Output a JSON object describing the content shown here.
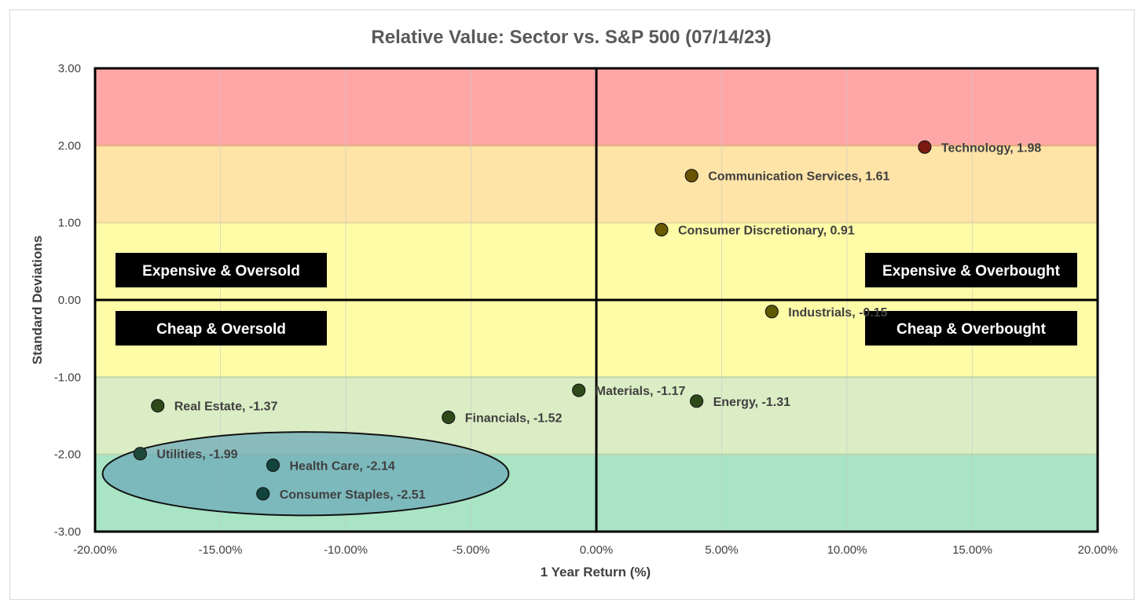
{
  "chart_data": {
    "type": "scatter",
    "title": "Relative Value: Sector vs. S&P 500 (07/14/23)",
    "xlabel": "1 Year Return (%)",
    "ylabel": "Standard Deviations",
    "xlim": [
      -20,
      20
    ],
    "ylim": [
      -3,
      3
    ],
    "x_ticks": [
      "-20.00%",
      "-15.00%",
      "-10.00%",
      "-5.00%",
      "0.00%",
      "5.00%",
      "10.00%",
      "15.00%",
      "20.00%"
    ],
    "y_ticks": [
      "3.00",
      "2.00",
      "1.00",
      "0.00",
      "-1.00",
      "-2.00",
      "-3.00"
    ],
    "grid": true,
    "bands": [
      {
        "from": 2,
        "to": 3,
        "color": "#ffa7a7"
      },
      {
        "from": 1,
        "to": 2,
        "color": "#ffe4a8"
      },
      {
        "from": -1,
        "to": 1,
        "color": "#fffca8"
      },
      {
        "from": -2,
        "to": -1,
        "color": "#daedc4"
      },
      {
        "from": -3,
        "to": -2,
        "color": "#a9e4c4"
      }
    ],
    "points": [
      {
        "label": "Technology, 1.98",
        "x": 13.1,
        "y": 1.98,
        "color": "#7a1a10"
      },
      {
        "label": "Communication Services, 1.61",
        "x": 3.8,
        "y": 1.61,
        "color": "#6a5200"
      },
      {
        "label": "Consumer Discretionary, 0.91",
        "x": 2.6,
        "y": 0.91,
        "color": "#6a5a00"
      },
      {
        "label": "Industrials, -0.15",
        "x": 7.0,
        "y": -0.15,
        "color": "#5e5a00"
      },
      {
        "label": "Materials, -1.17",
        "x": -0.7,
        "y": -1.17,
        "color": "#2e4a1a"
      },
      {
        "label": "Energy, -1.31",
        "x": 4.0,
        "y": -1.31,
        "color": "#2e4a1a"
      },
      {
        "label": "Real Estate, -1.37",
        "x": -17.5,
        "y": -1.37,
        "color": "#2e4a1a"
      },
      {
        "label": "Financials, -1.52",
        "x": -5.9,
        "y": -1.52,
        "color": "#2e4a1a"
      },
      {
        "label": "Utilities, -1.99",
        "x": -18.2,
        "y": -1.99,
        "color": "#1e4a3a"
      },
      {
        "label": "Health Care, -2.14",
        "x": -12.9,
        "y": -2.14,
        "color": "#10443c"
      },
      {
        "label": "Consumer Staples, -2.51",
        "x": -13.3,
        "y": -2.51,
        "color": "#10443c"
      }
    ],
    "highlight_ellipse": {
      "cx": -11.6,
      "cy": -2.25,
      "rx": 8.1,
      "ry": 0.54
    },
    "quadrants": [
      "Expensive & Oversold",
      "Expensive & Overbought",
      "Cheap & Oversold",
      "Cheap & Overbought"
    ]
  }
}
